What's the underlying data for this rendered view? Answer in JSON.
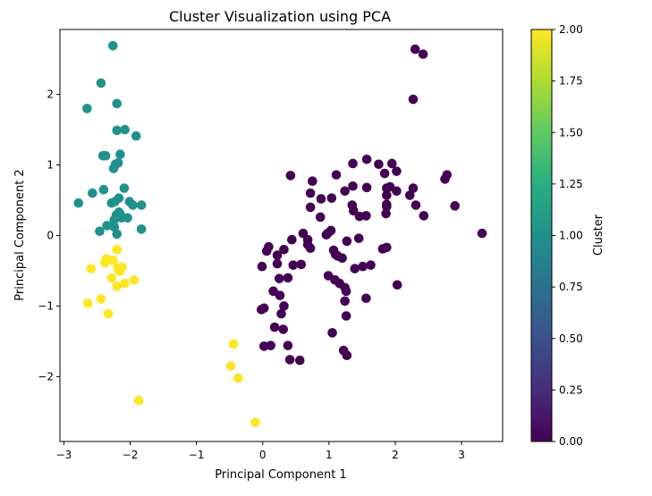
{
  "colors": {
    "cluster0": "#440154",
    "cluster1": "#21918c",
    "cluster2": "#fde725",
    "frame": "#000000"
  },
  "chart_data": {
    "type": "scatter",
    "title": "Cluster Visualization using PCA",
    "xlabel": "Principal Component 1",
    "ylabel": "Principal Component 2",
    "xlim": [
      -3.06,
      3.62
    ],
    "ylim": [
      -2.92,
      2.92
    ],
    "xticks": [
      -3,
      -2,
      -1,
      0,
      1,
      2,
      3
    ],
    "xtick_labels": [
      "−3",
      "−2",
      "−1",
      "0",
      "1",
      "2",
      "3"
    ],
    "yticks": [
      -2,
      -1,
      0,
      1,
      2
    ],
    "ytick_labels": [
      "−2",
      "−1",
      "0",
      "1",
      "2"
    ],
    "grid": false,
    "colorbar": {
      "label": "Cluster",
      "range": [
        0,
        2
      ],
      "ticks": [
        0,
        0.25,
        0.5,
        0.75,
        1,
        1.25,
        1.5,
        1.75,
        2
      ],
      "tick_labels": [
        "0.00",
        "0.25",
        "0.50",
        "0.75",
        "1.00",
        "1.25",
        "1.50",
        "1.75",
        "2.00"
      ],
      "colormap": "viridis"
    },
    "series": [
      {
        "cluster": 0,
        "points": [
          [
            0.42,
            0.85
          ],
          [
            0.75,
            0.77
          ],
          [
            1.36,
            1.02
          ],
          [
            1.57,
            1.08
          ],
          [
            1.75,
            1.01
          ],
          [
            1.95,
            1.02
          ],
          [
            2.02,
            0.91
          ],
          [
            2.27,
            0.67
          ],
          [
            2.75,
            0.8
          ],
          [
            2.78,
            0.86
          ],
          [
            1.11,
            0.86
          ],
          [
            1.84,
            0.88
          ],
          [
            1.87,
            0.67
          ],
          [
            1.92,
            0.69
          ],
          [
            2.02,
            0.63
          ],
          [
            2.22,
            0.57
          ],
          [
            1.57,
            0.68
          ],
          [
            1.36,
            0.7
          ],
          [
            1.24,
            0.63
          ],
          [
            0.72,
            0.6
          ],
          [
            0.88,
            0.52
          ],
          [
            1.04,
            0.53
          ],
          [
            1.35,
            0.43
          ],
          [
            1.87,
            0.57
          ],
          [
            1.87,
            0.44
          ],
          [
            1.87,
            0.41
          ],
          [
            2.31,
            0.43
          ],
          [
            2.43,
            0.28
          ],
          [
            2.9,
            0.42
          ],
          [
            0.72,
            0.4
          ],
          [
            0.87,
            0.26
          ],
          [
            1.37,
            0.35
          ],
          [
            1.46,
            0.27
          ],
          [
            1.56,
            0.28
          ],
          [
            1.86,
            0.31
          ],
          [
            3.31,
            0.03
          ],
          [
            0.61,
            0.03
          ],
          [
            0.68,
            -0.06
          ],
          [
            0.96,
            0.01
          ],
          [
            0.98,
            0.03
          ],
          [
            1.03,
            0.07
          ],
          [
            1.27,
            -0.08
          ],
          [
            1.45,
            -0.04
          ],
          [
            0.44,
            -0.06
          ],
          [
            0.32,
            -0.2
          ],
          [
            0.22,
            -0.28
          ],
          [
            0.09,
            -0.16
          ],
          [
            0.06,
            -0.22
          ],
          [
            0.72,
            -0.18
          ],
          [
            0.68,
            -0.13
          ],
          [
            1.07,
            -0.21
          ],
          [
            1.1,
            -0.27
          ],
          [
            1.13,
            -0.29
          ],
          [
            1.2,
            -0.32
          ],
          [
            1.81,
            -0.19
          ],
          [
            1.87,
            -0.17
          ],
          [
            -0.01,
            -0.44
          ],
          [
            0.22,
            -0.4
          ],
          [
            0.46,
            -0.42
          ],
          [
            0.58,
            -0.41
          ],
          [
            1.39,
            -0.47
          ],
          [
            1.51,
            -0.44
          ],
          [
            1.63,
            -0.42
          ],
          [
            0.25,
            -0.61
          ],
          [
            0.38,
            -0.6
          ],
          [
            0.99,
            -0.57
          ],
          [
            1.09,
            -0.63
          ],
          [
            1.16,
            -0.68
          ],
          [
            2.03,
            -0.7
          ],
          [
            0.16,
            -0.79
          ],
          [
            0.26,
            -0.85
          ],
          [
            1.24,
            -0.74
          ],
          [
            1.26,
            -0.79
          ],
          [
            1.24,
            -0.93
          ],
          [
            1.56,
            -0.89
          ],
          [
            0.32,
            -1.0
          ],
          [
            -0.02,
            -1.05
          ],
          [
            0.02,
            -1.03
          ],
          [
            0.28,
            -1.11
          ],
          [
            1.26,
            -1.14
          ],
          [
            0.18,
            -1.3
          ],
          [
            0.31,
            -1.33
          ],
          [
            1.05,
            -1.38
          ],
          [
            0.02,
            -1.57
          ],
          [
            0.12,
            -1.56
          ],
          [
            0.38,
            -1.56
          ],
          [
            1.22,
            -1.63
          ],
          [
            1.27,
            -1.7
          ],
          [
            0.41,
            -1.76
          ],
          [
            0.56,
            -1.77
          ],
          [
            2.27,
            1.93
          ],
          [
            2.3,
            2.64
          ],
          [
            2.42,
            2.57
          ]
        ]
      },
      {
        "cluster": 1,
        "points": [
          [
            -2.26,
            2.69
          ],
          [
            -2.44,
            2.16
          ],
          [
            -2.65,
            1.8
          ],
          [
            -2.2,
            1.87
          ],
          [
            -2.2,
            1.49
          ],
          [
            -2.08,
            1.5
          ],
          [
            -1.91,
            1.41
          ],
          [
            -2.37,
            1.13
          ],
          [
            -2.41,
            1.13
          ],
          [
            -2.15,
            1.15
          ],
          [
            -2.22,
            1.01
          ],
          [
            -2.18,
            1.03
          ],
          [
            -2.25,
            0.95
          ],
          [
            -2.57,
            0.6
          ],
          [
            -2.4,
            0.65
          ],
          [
            -2.09,
            0.67
          ],
          [
            -2.17,
            0.53
          ],
          [
            -2.23,
            0.48
          ],
          [
            -2.28,
            0.46
          ],
          [
            -2.01,
            0.48
          ],
          [
            -1.96,
            0.43
          ],
          [
            -1.83,
            0.43
          ],
          [
            -2.78,
            0.46
          ],
          [
            -2.17,
            0.33
          ],
          [
            -2.21,
            0.29
          ],
          [
            -2.15,
            0.3
          ],
          [
            -2.24,
            0.22
          ],
          [
            -2.13,
            0.25
          ],
          [
            -2.04,
            0.25
          ],
          [
            -2.35,
            0.14
          ],
          [
            -2.24,
            0.12
          ],
          [
            -2.46,
            0.06
          ],
          [
            -1.83,
            0.09
          ],
          [
            -2.2,
            0.02
          ]
        ]
      },
      {
        "cluster": 2,
        "points": [
          [
            -2.2,
            -0.2
          ],
          [
            -2.36,
            -0.33
          ],
          [
            -2.26,
            -0.35
          ],
          [
            -2.38,
            -0.39
          ],
          [
            -2.19,
            -0.46
          ],
          [
            -2.12,
            -0.45
          ],
          [
            -2.16,
            -0.51
          ],
          [
            -2.59,
            -0.47
          ],
          [
            -2.28,
            -0.6
          ],
          [
            -2.2,
            -0.72
          ],
          [
            -2.08,
            -0.68
          ],
          [
            -1.94,
            -0.63
          ],
          [
            -2.44,
            -0.9
          ],
          [
            -2.64,
            -0.96
          ],
          [
            -2.33,
            -1.11
          ],
          [
            -0.44,
            -1.54
          ],
          [
            -0.48,
            -1.85
          ],
          [
            -0.37,
            -2.02
          ],
          [
            -1.87,
            -2.34
          ],
          [
            -0.11,
            -2.65
          ]
        ]
      }
    ]
  }
}
